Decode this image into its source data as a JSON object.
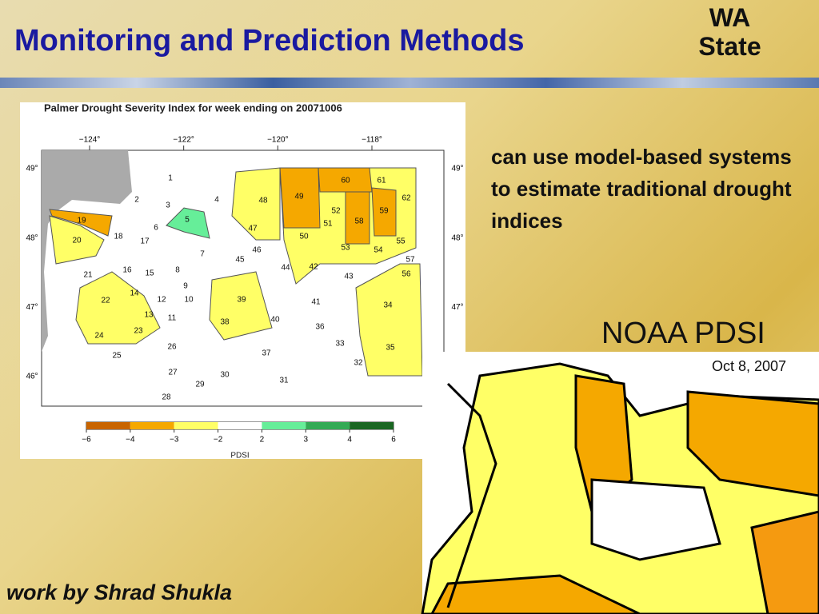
{
  "header": {
    "title": "Monitoring and Prediction Methods",
    "tag": [
      "WA",
      "State"
    ]
  },
  "map": {
    "title": "Palmer Drought Severity Index for week ending on 20071006",
    "lon_ticks": [
      {
        "value": -124,
        "label": "−124°"
      },
      {
        "value": -122,
        "label": "−122°"
      },
      {
        "value": -120,
        "label": "−120°"
      },
      {
        "value": -118,
        "label": "−118°"
      }
    ],
    "lat_ticks": [
      {
        "value": 49,
        "label": "49°"
      },
      {
        "value": 48,
        "label": "48°"
      },
      {
        "value": 47,
        "label": "47°"
      },
      {
        "value": 46,
        "label": "46°"
      }
    ],
    "regions": [
      "1",
      "2",
      "3",
      "4",
      "5",
      "6",
      "7",
      "8",
      "9",
      "10",
      "11",
      "12",
      "13",
      "14",
      "15",
      "16",
      "17",
      "18",
      "19",
      "20",
      "21",
      "22",
      "23",
      "24",
      "25",
      "26",
      "27",
      "28",
      "29",
      "30",
      "31",
      "32",
      "33",
      "34",
      "35",
      "36",
      "37",
      "38",
      "39",
      "40",
      "41",
      "42",
      "43",
      "44",
      "45",
      "46",
      "47",
      "48",
      "49",
      "50",
      "51",
      "52",
      "53",
      "54",
      "55",
      "56",
      "57",
      "58",
      "59",
      "60",
      "61",
      "62"
    ],
    "colorbar": {
      "label": "PDSI",
      "ticks": [
        {
          "value": -6,
          "label": "−6"
        },
        {
          "value": -4,
          "label": "−4"
        },
        {
          "value": -3,
          "label": "−3"
        },
        {
          "value": -2,
          "label": "−2"
        },
        2,
        3,
        4,
        6
      ],
      "colors": [
        "#c86400",
        "#f5a800",
        "#ffff66",
        "#ffffff",
        "#66ee99",
        "#33aa55",
        "#1a6622"
      ]
    }
  },
  "body": {
    "text": "can use model-based systems to estimate traditional drought indices",
    "inset_title": "NOAA PDSI",
    "inset_date": "Oct 8, 2007",
    "credit": "work by Shrad Shukla"
  }
}
